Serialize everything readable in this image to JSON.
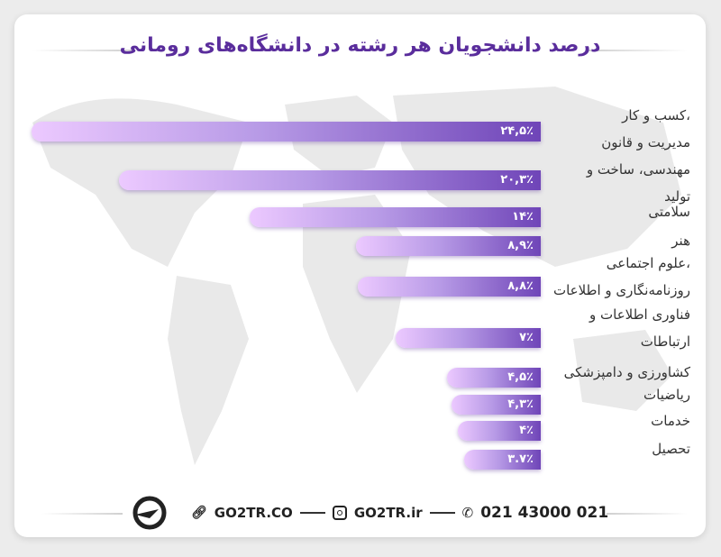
{
  "chart_data": {
    "type": "bar",
    "orientation": "horizontal",
    "title": "درصد دانشجویان هر رشته در دانشگاه‌های رومانی",
    "categories": [
      [
        "،کسب و کار",
        "مدیریت و قانون"
      ],
      [
        "مهندسی، ساخت و",
        "تولید"
      ],
      [
        "سلامتی"
      ],
      [
        "هنر"
      ],
      [
        "،علوم اجتماعی",
        "روزنامه‌نگاری و اطلاعات"
      ],
      [
        "فناوری اطلاعات و",
        "ارتباطات"
      ],
      [
        "کشاورزی و دامپزشکی"
      ],
      [
        "ریاضیات"
      ],
      [
        "خدمات"
      ],
      [
        "تحصیل"
      ]
    ],
    "values": [
      24.5,
      20.3,
      14,
      8.9,
      8.8,
      7,
      4.5,
      4.3,
      4,
      3.7
    ],
    "value_labels": [
      "۲۴,۵٪",
      "۲۰,۳٪",
      "۱۴٪",
      "۸,۹٪",
      "۸,۸٪",
      "۷٪",
      "۴,۵٪",
      "۴,۳٪",
      "۴٪",
      "۳.۷٪"
    ],
    "unit": "%"
  },
  "footer": {
    "website": "GO2TR.CO",
    "instagram": "GO2TR.ir",
    "phone": "021 43000 021"
  },
  "colors": {
    "title": "#5a2d9c",
    "bar_start": "#ecc9ff",
    "bar_end": "#6f45b8"
  }
}
